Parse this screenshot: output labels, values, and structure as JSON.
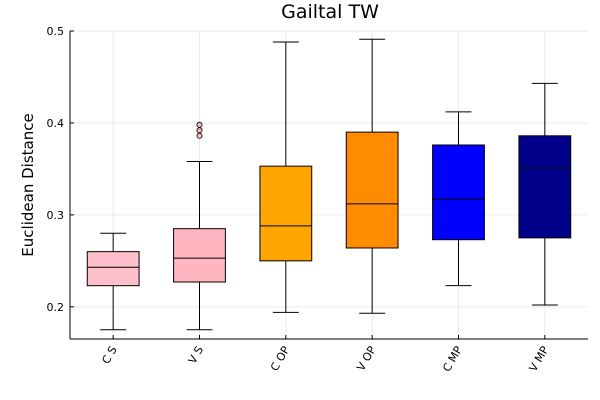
{
  "chart_data": {
    "type": "box",
    "title": "Gailtal TW",
    "xlabel": "",
    "ylabel": "Euclidean Distance",
    "ylim": [
      0.165,
      0.5
    ],
    "yticks": [
      0.2,
      0.3,
      0.4,
      0.5
    ],
    "ytick_labels": [
      "0.2",
      "0.3",
      "0.4",
      "0.5"
    ],
    "grid": true,
    "legend": "none",
    "categories": [
      "C S",
      "V S",
      "C OP",
      "V OP",
      "C MP",
      "V MP"
    ],
    "boxes": [
      {
        "category": "C S",
        "color": "#ffc0cb",
        "whisker_low": 0.175,
        "q1": 0.223,
        "median": 0.243,
        "q3": 0.26,
        "whisker_high": 0.28,
        "outliers": []
      },
      {
        "category": "V S",
        "color": "#ffb6c1",
        "whisker_low": 0.175,
        "q1": 0.227,
        "median": 0.253,
        "q3": 0.285,
        "whisker_high": 0.358,
        "outliers": [
          0.386,
          0.392,
          0.398
        ]
      },
      {
        "category": "C OP",
        "color": "#ffa500",
        "whisker_low": 0.194,
        "q1": 0.25,
        "median": 0.288,
        "q3": 0.353,
        "whisker_high": 0.488,
        "outliers": []
      },
      {
        "category": "V OP",
        "color": "#ff8c00",
        "whisker_low": 0.193,
        "q1": 0.264,
        "median": 0.312,
        "q3": 0.39,
        "whisker_high": 0.491,
        "outliers": []
      },
      {
        "category": "C MP",
        "color": "#0000ff",
        "whisker_low": 0.223,
        "q1": 0.273,
        "median": 0.317,
        "q3": 0.376,
        "whisker_high": 0.412,
        "outliers": []
      },
      {
        "category": "V MP",
        "color": "#00008b",
        "whisker_low": 0.202,
        "q1": 0.275,
        "median": 0.351,
        "q3": 0.386,
        "whisker_high": 0.443,
        "outliers": []
      }
    ]
  }
}
